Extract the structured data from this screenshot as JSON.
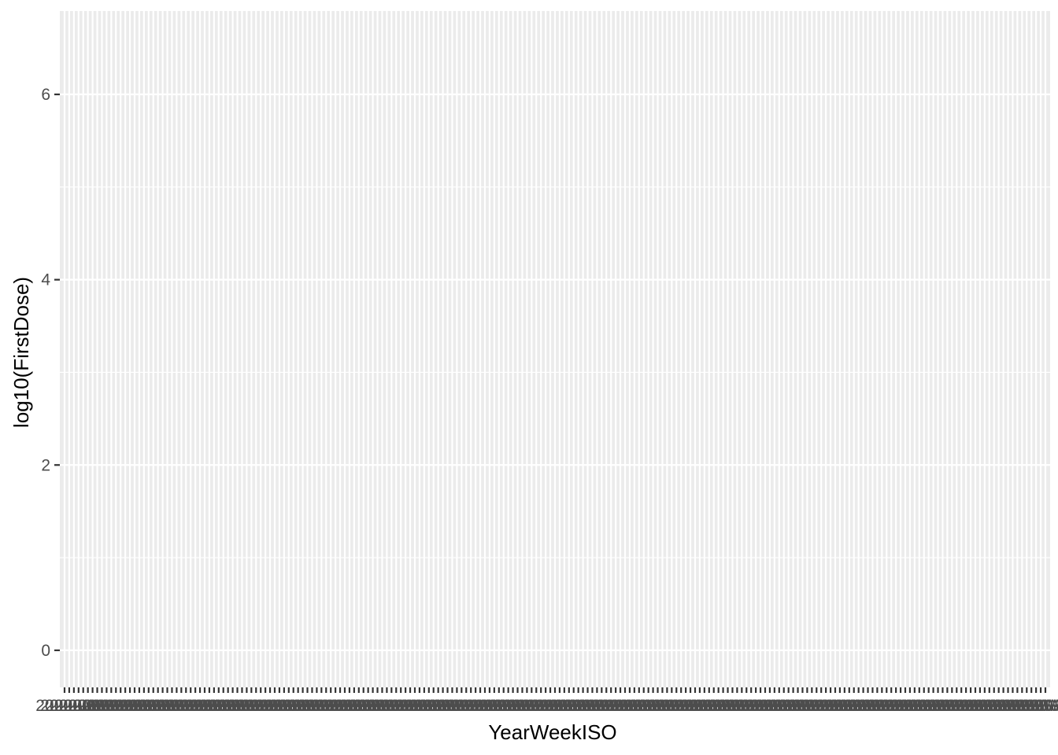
{
  "chart_data": {
    "type": "scatter",
    "title": "",
    "xlabel": "YearWeekISO",
    "ylabel": "log10(FirstDose)",
    "x_axis": {
      "kind": "categorical",
      "category_count": 211,
      "tick_labels_note": "labels overlap and are illegible",
      "tick_label_stub": "2020-W"
    },
    "y_axis": {
      "ylim": [
        -0.4,
        6.9
      ],
      "major_ticks": [
        0,
        2,
        4,
        6
      ],
      "minor_ticks": [
        1,
        3,
        5
      ]
    },
    "series": [],
    "grid": true,
    "legend": "none",
    "colors": {
      "panel_background": "#ebebeb",
      "grid_line": "#ffffff",
      "tick_text": "#4d4d4d",
      "tick_mark": "#333333",
      "axis_title": "#000000"
    }
  }
}
